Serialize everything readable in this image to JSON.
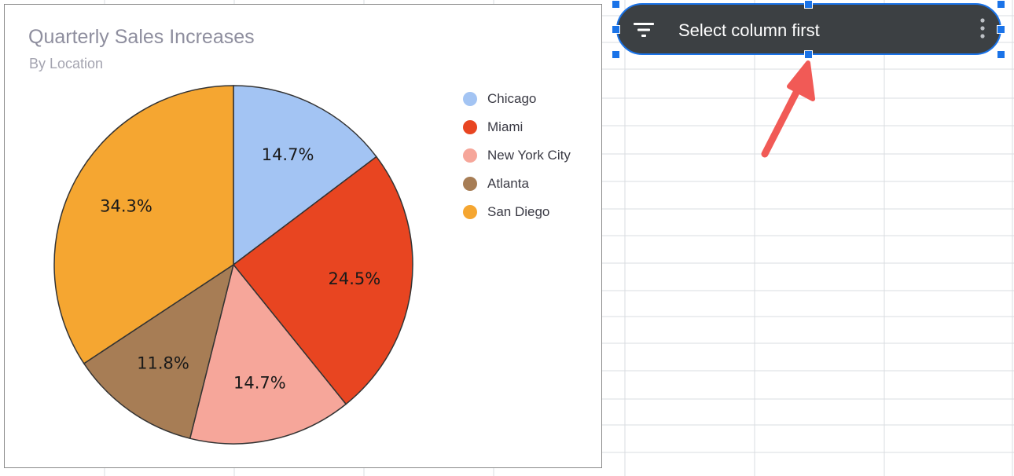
{
  "chart_data": {
    "type": "pie",
    "title": "Quarterly Sales Increases",
    "subtitle": "By Location",
    "legend_position": "right",
    "categories": [
      "Chicago",
      "Miami",
      "New York City",
      "Atlanta",
      "San Diego"
    ],
    "values": [
      14.7,
      24.5,
      14.7,
      11.8,
      34.3
    ],
    "labels": [
      "14.7%",
      "24.5%",
      "14.7%",
      "11.8%",
      "34.3%"
    ],
    "colors": [
      "#a3c4f3",
      "#e84521",
      "#f6a69a",
      "#a77d55",
      "#f5a631"
    ],
    "legend": [
      {
        "label": "Chicago",
        "color": "#a3c4f3"
      },
      {
        "label": "Miami",
        "color": "#e84521"
      },
      {
        "label": "New York City",
        "color": "#f6a69a"
      },
      {
        "label": "Atlanta",
        "color": "#a77d55"
      },
      {
        "label": "San Diego",
        "color": "#f5a631"
      }
    ]
  },
  "slicer": {
    "label": "Select column first",
    "filter_icon": "filter-icon",
    "menu_icon": "more-vertical-icon",
    "background": "#3c4043",
    "selection_color": "#1a73e8"
  },
  "annotation": {
    "icon": "arrow-icon",
    "color": "#f15a56"
  }
}
